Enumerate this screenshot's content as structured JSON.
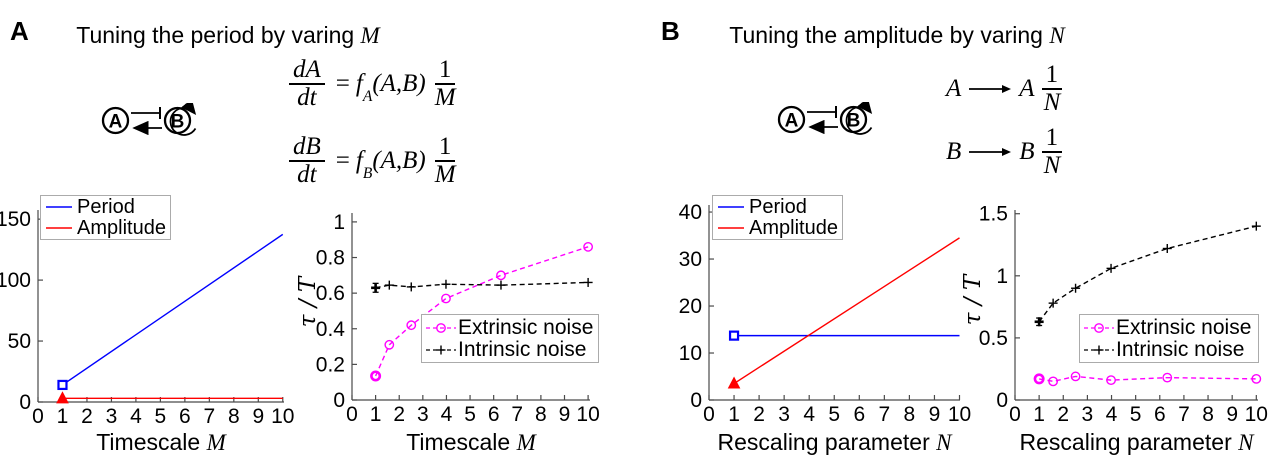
{
  "panel_a": {
    "label": "A",
    "title_text": "Tuning the period by varing ",
    "title_var": "M",
    "node_a": "A",
    "node_b": "B",
    "eq1": {
      "num": "dA",
      "den": "dt",
      "eq": "=",
      "f": "f",
      "fsub": "A",
      "args": "(A,B)",
      "fnum": "1",
      "fden": "M"
    },
    "eq2": {
      "num": "dB",
      "den": "dt",
      "eq": "=",
      "f": "f",
      "fsub": "B",
      "args": "(A,B)",
      "fnum": "1",
      "fden": "M"
    }
  },
  "panel_b": {
    "label": "B",
    "title_text": "Tuning the amplitude by varing ",
    "title_var": "N",
    "node_a": "A",
    "node_b": "B",
    "eq1": {
      "lhs": "A",
      "rhs": "A",
      "fnum": "1",
      "fden": "N"
    },
    "eq2": {
      "lhs": "B",
      "rhs": "B",
      "fnum": "1",
      "fden": "N"
    }
  },
  "colors": {
    "period": "#0000ff",
    "amplitude": "#ff0000",
    "extrinsic": "#ff00ff",
    "intrinsic": "#000000",
    "axis": "#4a4a4a"
  },
  "chart_data": [
    {
      "type": "line",
      "name": "period-amplitude-vs-timescale-m",
      "xlabel_text": "Timescale ",
      "xlabel_var": "M",
      "ylabel": "",
      "xlim": [
        0,
        10.05
      ],
      "ylim": [
        0,
        157.5
      ],
      "grid": false,
      "xticks": {
        "values": [
          0,
          1,
          2,
          3,
          4,
          5,
          6,
          7,
          8,
          9,
          10
        ],
        "labels": [
          "0",
          "1",
          "2",
          "3",
          "4",
          "5",
          "6",
          "7",
          "8",
          "9",
          "10"
        ]
      },
      "yticks": {
        "values": [
          0,
          50,
          100,
          150
        ],
        "labels": [
          "0",
          "50",
          "100",
          "150"
        ]
      },
      "legend_position": "north-west",
      "series": [
        {
          "name": "Period",
          "color": "#0000ff",
          "style": "solid",
          "x": [
            1,
            10
          ],
          "y": [
            14,
            137.5
          ],
          "marker": {
            "shape": "square",
            "on": "first"
          }
        },
        {
          "name": "Amplitude",
          "color": "#ff0000",
          "style": "solid",
          "x": [
            1,
            10
          ],
          "y": [
            3,
            3
          ],
          "marker": {
            "shape": "triangle",
            "on": "first"
          }
        }
      ]
    },
    {
      "type": "line",
      "name": "noise-fraction-vs-timescale-m",
      "xlabel_text": "Timescale ",
      "xlabel_var": "M",
      "ylabel": "τ / T",
      "xlim": [
        0,
        10.08
      ],
      "ylim": [
        0,
        1.05
      ],
      "grid": false,
      "xticks": {
        "values": [
          0,
          1,
          2,
          3,
          4,
          5,
          6,
          7,
          8,
          9,
          10
        ],
        "labels": [
          "0",
          "1",
          "2",
          "3",
          "4",
          "5",
          "6",
          "7",
          "8",
          "9",
          "10"
        ]
      },
      "yticks": {
        "values": [
          0,
          0.2,
          0.4,
          0.6,
          0.8,
          1
        ],
        "labels": [
          "0",
          "0.2",
          "0.4",
          "0.6",
          "0.8",
          "1"
        ]
      },
      "legend_position": "east",
      "series": [
        {
          "name": "Extrinsic noise",
          "color": "#ff00ff",
          "style": "dashed",
          "x": [
            1,
            1.58,
            2.51,
            3.98,
            6.31,
            10
          ],
          "y": [
            0.135,
            0.31,
            0.42,
            0.57,
            0.7,
            0.86
          ],
          "marker": {
            "shape": "circle",
            "on": "all",
            "bold_first": true
          }
        },
        {
          "name": "Intrinsic noise",
          "color": "#000000",
          "style": "dashed",
          "x": [
            1,
            1.58,
            2.51,
            3.98,
            6.31,
            10
          ],
          "y": [
            0.63,
            0.645,
            0.635,
            0.65,
            0.645,
            0.66
          ],
          "marker": {
            "shape": "plus",
            "on": "all",
            "bold_first": true
          },
          "err_first": 0.025
        }
      ]
    },
    {
      "type": "line",
      "name": "period-amplitude-vs-rescaling-n",
      "xlabel_text": "Rescaling parameter ",
      "xlabel_var": "N",
      "ylabel": "",
      "xlim": [
        0,
        10.02
      ],
      "ylim": [
        0,
        41.5
      ],
      "grid": false,
      "xticks": {
        "values": [
          0,
          1,
          2,
          3,
          4,
          5,
          6,
          7,
          8,
          9,
          10
        ],
        "labels": [
          "0",
          "1",
          "2",
          "3",
          "4",
          "5",
          "6",
          "7",
          "8",
          "9",
          "10"
        ]
      },
      "yticks": {
        "values": [
          0,
          10,
          20,
          30,
          40
        ],
        "labels": [
          "0",
          "10",
          "20",
          "30",
          "40"
        ]
      },
      "legend_position": "north-west",
      "series": [
        {
          "name": "Period",
          "color": "#0000ff",
          "style": "solid",
          "x": [
            1,
            10
          ],
          "y": [
            13.7,
            13.7
          ],
          "marker": {
            "shape": "square",
            "on": "first"
          }
        },
        {
          "name": "Amplitude",
          "color": "#ff0000",
          "style": "solid",
          "x": [
            1,
            10
          ],
          "y": [
            3.5,
            34.5
          ],
          "marker": {
            "shape": "triangle",
            "on": "first"
          }
        }
      ]
    },
    {
      "type": "line",
      "name": "noise-fraction-vs-rescaling-n",
      "xlabel_text": "Rescaling parameter ",
      "xlabel_var": "N",
      "ylabel": "τ / T",
      "xlim": [
        0,
        10.07
      ],
      "ylim": [
        0,
        1.53
      ],
      "grid": false,
      "xticks": {
        "values": [
          0,
          1,
          2,
          3,
          4,
          5,
          6,
          7,
          8,
          9,
          10
        ],
        "labels": [
          "0",
          "1",
          "2",
          "3",
          "4",
          "5",
          "6",
          "7",
          "8",
          "9",
          "10"
        ]
      },
      "yticks": {
        "values": [
          0,
          0.5,
          1,
          1.5
        ],
        "labels": [
          "0",
          "0.5",
          "1",
          "1.5"
        ]
      },
      "legend_position": "east",
      "series": [
        {
          "name": "Extrinsic noise",
          "color": "#ff00ff",
          "style": "dashed",
          "x": [
            1,
            1.58,
            2.51,
            3.98,
            6.31,
            10
          ],
          "y": [
            0.17,
            0.15,
            0.19,
            0.16,
            0.18,
            0.17
          ],
          "marker": {
            "shape": "circle",
            "on": "all",
            "bold_first": true
          }
        },
        {
          "name": "Intrinsic noise",
          "color": "#000000",
          "style": "dashed",
          "x": [
            1,
            1.58,
            2.51,
            3.98,
            6.31,
            10
          ],
          "y": [
            0.63,
            0.78,
            0.9,
            1.06,
            1.22,
            1.4
          ],
          "marker": {
            "shape": "plus",
            "on": "all",
            "bold_first": true
          },
          "err_first": 0.03
        }
      ]
    }
  ]
}
